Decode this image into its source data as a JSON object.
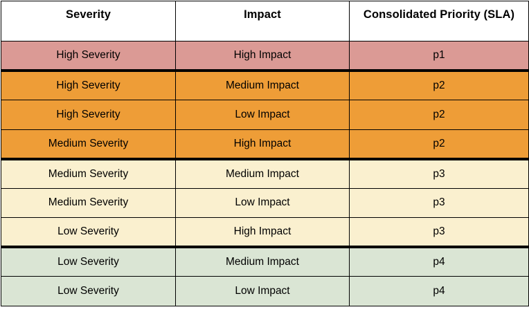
{
  "table": {
    "name": "severity-impact-priority-matrix",
    "columns": [
      {
        "key": "severity",
        "label": "Severity"
      },
      {
        "key": "impact",
        "label": "Impact"
      },
      {
        "key": "priority",
        "label": "Consolidated Priority (SLA)"
      }
    ],
    "rows": [
      {
        "severity": "High Severity",
        "impact": "High Impact",
        "priority": "p1",
        "tier": "p1",
        "group_end": true
      },
      {
        "severity": "High Severity",
        "impact": "Medium Impact",
        "priority": "p2",
        "tier": "p2",
        "group_end": false
      },
      {
        "severity": "High Severity",
        "impact": "Low Impact",
        "priority": "p2",
        "tier": "p2",
        "group_end": false
      },
      {
        "severity": "Medium Severity",
        "impact": "High Impact",
        "priority": "p2",
        "tier": "p2",
        "group_end": true
      },
      {
        "severity": "Medium Severity",
        "impact": "Medium Impact",
        "priority": "p3",
        "tier": "p3",
        "group_end": false
      },
      {
        "severity": "Medium Severity",
        "impact": "Low Impact",
        "priority": "p3",
        "tier": "p3",
        "group_end": false
      },
      {
        "severity": "Low Severity",
        "impact": "High Impact",
        "priority": "p3",
        "tier": "p3",
        "group_end": true
      },
      {
        "severity": "Low Severity",
        "impact": "Medium Impact",
        "priority": "p4",
        "tier": "p4",
        "group_end": false
      },
      {
        "severity": "Low Severity",
        "impact": "Low Impact",
        "priority": "p4",
        "tier": "p4",
        "group_end": false
      }
    ],
    "tier_colors": {
      "p1": "#DB9A95",
      "p2": "#EE9D37",
      "p3": "#FAF0CF",
      "p4": "#DAE5D4"
    },
    "border_color": "#000000",
    "header_background": "#FFFFFF"
  }
}
